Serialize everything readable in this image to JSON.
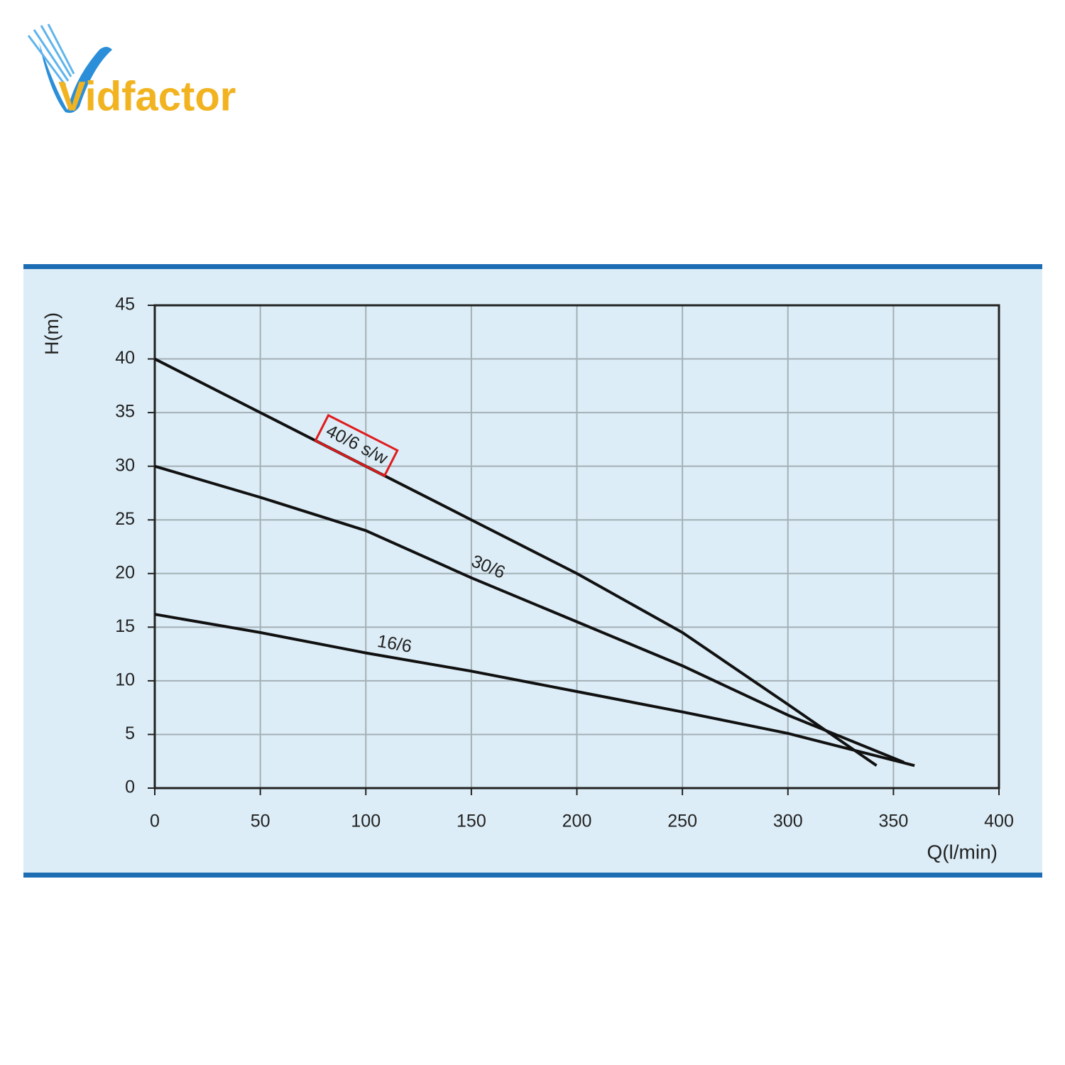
{
  "logo": "Vidfactor",
  "chart_data": {
    "type": "line",
    "xlabel": "Q(l/min)",
    "ylabel": "H(m)",
    "xlim": [
      0,
      400
    ],
    "xticks": [
      0,
      50,
      100,
      150,
      200,
      250,
      300,
      350,
      400
    ],
    "ylim": [
      0,
      45
    ],
    "yticks": [
      0,
      5,
      10,
      15,
      20,
      25,
      30,
      35,
      40,
      45
    ],
    "grid": true,
    "series": [
      {
        "name": "40/6 s/w",
        "color": "#111111",
        "x": [
          0,
          50,
          100,
          150,
          200,
          250,
          300,
          342
        ],
        "values": [
          40,
          35,
          30,
          25,
          20,
          14.5,
          7.8,
          2.1
        ]
      },
      {
        "name": "30/6",
        "color": "#111111",
        "x": [
          0,
          50,
          100,
          150,
          200,
          250,
          300,
          355
        ],
        "values": [
          30,
          27.1,
          24,
          19.6,
          15.5,
          11.4,
          6.8,
          2.4
        ]
      },
      {
        "name": "16/6",
        "color": "#111111",
        "x": [
          0,
          50,
          100,
          150,
          200,
          250,
          300,
          360
        ],
        "values": [
          16.2,
          14.5,
          12.6,
          10.9,
          9,
          7.1,
          5.1,
          2.1
        ]
      }
    ]
  }
}
